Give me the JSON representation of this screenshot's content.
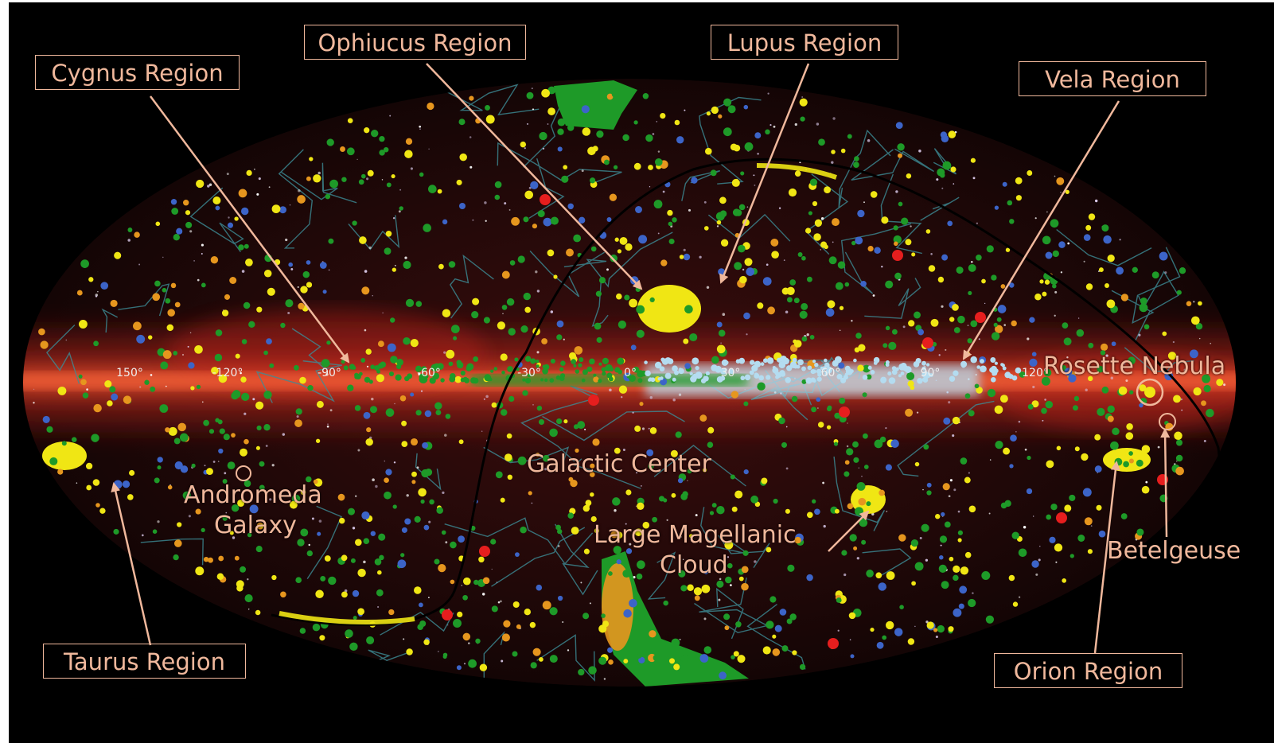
{
  "region_labels": {
    "cygnus": "Cygnus Region",
    "ophiucus": "Ophiucus Region",
    "lupus": "Lupus Region",
    "vela": "Vela Region",
    "taurus": "Taurus Region",
    "orion": "Orion Region"
  },
  "object_labels": {
    "rosette": "Rosette Nebula",
    "andromeda_line1": "Andromeda",
    "andromeda_line2": "Galaxy",
    "galactic_center": "Galactic Center",
    "lmc_line1": "Large Magellanic",
    "lmc_line2": "Cloud",
    "betelgeuse": "Betelgeuse"
  },
  "longitude_ticks": [
    "150°",
    "-120°",
    "-90°",
    "-60°",
    "-30°",
    "0°",
    "30°",
    "60°",
    "90°",
    "120°"
  ],
  "colors": {
    "background": "#000000",
    "label": "#f0b89c",
    "galactic_plane": "#d2281e",
    "constellation_lines": "#3c8c96",
    "source_green": "#1e9a28",
    "source_yellow": "#f0e614",
    "source_blue": "#3c64c8",
    "source_red": "#e61e1e",
    "source_orange": "#e6961e",
    "plane_cyan": "#b4dcf0",
    "gould_belt": "#000000"
  },
  "icons": [
    "pointer-arrow-icon",
    "circle-marker-icon"
  ]
}
